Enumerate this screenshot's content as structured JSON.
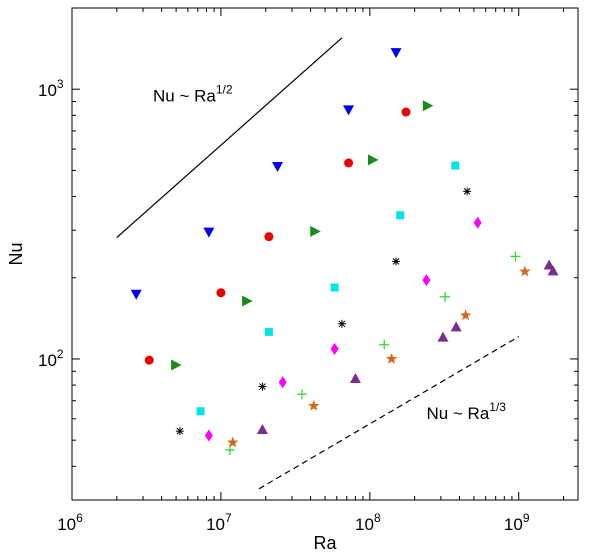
{
  "chart_data": {
    "type": "scatter",
    "xscale": "log",
    "yscale": "log",
    "xlim": [
      1000000,
      2500000000
    ],
    "ylim": [
      30,
      2000
    ],
    "xlabel": "Ra",
    "ylabel": "Nu",
    "grid": false,
    "x_ticks": [
      {
        "value": 1000000,
        "base": "10",
        "exp": "6"
      },
      {
        "value": 10000000,
        "base": "10",
        "exp": "7"
      },
      {
        "value": 100000000,
        "base": "10",
        "exp": "8"
      },
      {
        "value": 1000000000,
        "base": "10",
        "exp": "9"
      }
    ],
    "y_ticks": [
      {
        "value": 100,
        "base": "10",
        "exp": "2"
      },
      {
        "value": 1000,
        "base": "10",
        "exp": "3"
      }
    ],
    "series": [
      {
        "marker": "triangle-down",
        "color": "#0000ee",
        "points": [
          [
            2700000,
            173
          ],
          [
            8300000,
            294
          ],
          [
            24000000,
            515
          ],
          [
            72000000,
            835
          ],
          [
            150000000,
            1360
          ]
        ]
      },
      {
        "marker": "circle",
        "color": "#ee0000",
        "points": [
          [
            3300000,
            99
          ],
          [
            10000000,
            176
          ],
          [
            21000000,
            284
          ],
          [
            72000000,
            533
          ],
          [
            175000000,
            823
          ]
        ]
      },
      {
        "marker": "triangle-right",
        "color": "#1a8a1a",
        "points": [
          [
            5000000,
            95
          ],
          [
            15000000,
            164
          ],
          [
            43000000,
            297
          ],
          [
            105000000,
            547
          ],
          [
            245000000,
            868
          ]
        ]
      },
      {
        "marker": "square",
        "color": "#00e5e5",
        "points": [
          [
            7300000,
            64
          ],
          [
            21000000,
            126
          ],
          [
            58000000,
            184
          ],
          [
            160000000,
            341
          ],
          [
            375000000,
            521
          ]
        ]
      },
      {
        "marker": "asterisk",
        "color": "#000000",
        "points": [
          [
            5300000,
            54
          ],
          [
            19000000,
            79
          ],
          [
            65000000,
            135
          ],
          [
            150000000,
            230
          ],
          [
            450000000,
            418
          ]
        ]
      },
      {
        "marker": "diamond",
        "color": "#ff00ff",
        "points": [
          [
            8300000,
            52
          ],
          [
            26000000,
            82
          ],
          [
            58000000,
            109
          ],
          [
            240000000,
            196
          ],
          [
            530000000,
            320
          ]
        ]
      },
      {
        "marker": "plus",
        "color": "#33dd33",
        "points": [
          [
            11500000,
            46
          ],
          [
            35000000,
            74
          ],
          [
            125000000,
            113
          ],
          [
            320000000,
            170
          ],
          [
            950000000,
            240
          ]
        ]
      },
      {
        "marker": "star",
        "color": "#d2691e",
        "points": [
          [
            12000000,
            49
          ],
          [
            42000000,
            67
          ],
          [
            140000000,
            100
          ],
          [
            440000000,
            145
          ],
          [
            1100000000,
            211
          ]
        ]
      },
      {
        "marker": "triangle-up",
        "color": "#7b2d8e",
        "points": [
          [
            19000000,
            55
          ],
          [
            80000000,
            85
          ],
          [
            310000000,
            121
          ],
          [
            380000000,
            132
          ],
          [
            1600000000,
            224
          ],
          [
            1700000000,
            213
          ]
        ]
      }
    ],
    "lines": [
      {
        "style": "solid",
        "points": [
          [
            2000000,
            282
          ],
          [
            65000000,
            1550
          ]
        ]
      },
      {
        "style": "dashed",
        "points": [
          [
            18000000,
            33
          ],
          [
            1000000000,
            121
          ]
        ]
      }
    ],
    "annotations": [
      {
        "id": "half",
        "pre": "Nu ~ Ra",
        "sup": "1/2",
        "x": 3500000,
        "y": 900
      },
      {
        "id": "third",
        "pre": "Nu ~ Ra",
        "sup": "1/3",
        "x": 240000000,
        "y": 60
      }
    ]
  }
}
